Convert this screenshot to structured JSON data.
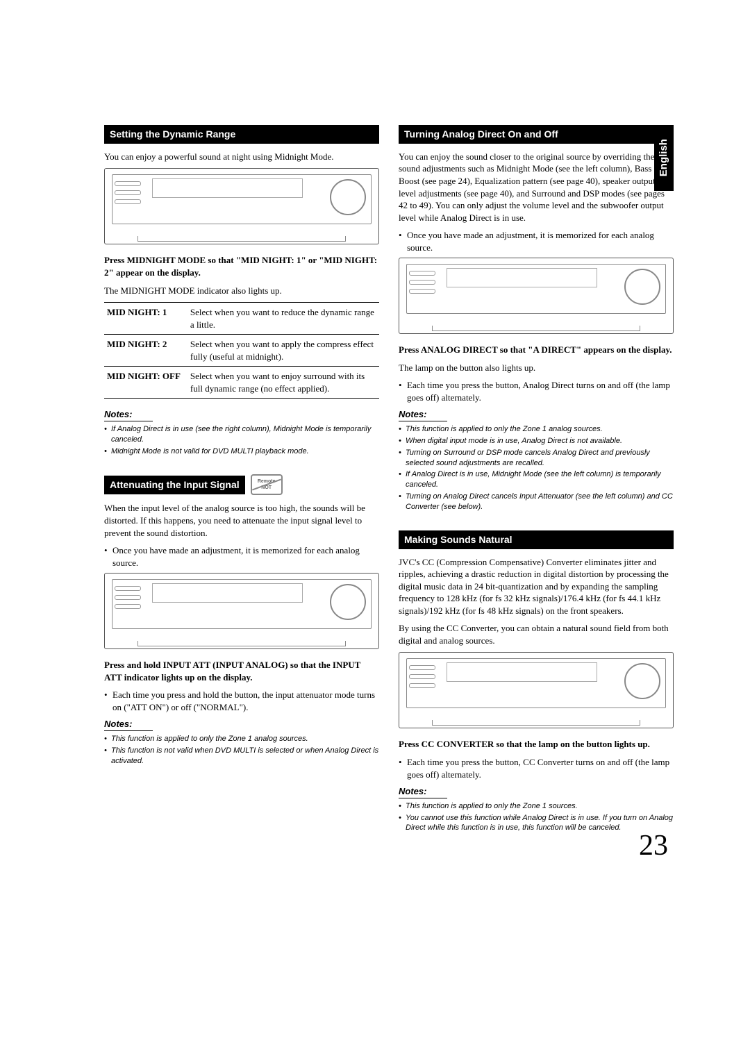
{
  "page": {
    "number": "23",
    "language": "English"
  },
  "left": {
    "section1": {
      "heading": "Setting the Dynamic Range",
      "intro": "You can enjoy a powerful sound at night using Midnight Mode.",
      "instruction": "Press MIDNIGHT MODE so that \"MID NIGHT: 1\" or \"MID NIGHT: 2\" appear on the display.",
      "afterInstruction": "The MIDNIGHT MODE indicator also lights up.",
      "options": [
        {
          "label": "MID NIGHT: 1",
          "desc": "Select when you want to reduce the dynamic range a little."
        },
        {
          "label": "MID NIGHT: 2",
          "desc": "Select when you want to apply the compress effect fully (useful at midnight)."
        },
        {
          "label": "MID NIGHT: OFF",
          "desc": "Select when you want to enjoy surround with its full dynamic range (no effect applied)."
        }
      ],
      "notesHeading": "Notes:",
      "notes": [
        "If Analog Direct is in use (see the right column), Midnight Mode is temporarily canceled.",
        "Midnight Mode is not valid for DVD MULTI playback mode."
      ]
    },
    "section2": {
      "heading": "Attenuating the Input Signal",
      "remoteBadge": {
        "top": "Remote",
        "bottom": "NOT"
      },
      "intro": "When the input level of the analog source is too high, the sounds will be distorted. If this happens, you need to attenuate the input signal level to prevent the sound distortion.",
      "bullet1": "Once you have made an adjustment, it is memorized for each analog source.",
      "instruction": "Press and hold INPUT ATT (INPUT ANALOG) so that the INPUT ATT indicator lights up on the display.",
      "bullet2": "Each time you press and hold the button, the input attenuator mode turns on (\"ATT ON\") or off (\"NORMAL\").",
      "notesHeading": "Notes:",
      "notes": [
        "This function is applied to only the Zone 1 analog sources.",
        "This function is not valid when DVD MULTI is selected or when Analog Direct is activated."
      ]
    }
  },
  "right": {
    "section1": {
      "heading": "Turning Analog Direct On and Off",
      "intro": "You can enjoy the sound closer to the original source by overriding the sound adjustments such as Midnight Mode (see the left column), Bass Boost (see page 24), Equalization pattern (see page 40), speaker output level adjustments (see page 40), and Surround and DSP modes (see pages 42 to 49). You can only adjust the volume level and the subwoofer output level while Analog Direct is in use.",
      "bullet1": "Once you have made an adjustment, it is memorized for each analog source.",
      "instruction": "Press ANALOG DIRECT so that \"A DIRECT\" appears on the display.",
      "afterInstruction": "The lamp on the button also lights up.",
      "bullet2": "Each time you press the button, Analog Direct turns on and off (the lamp goes off) alternately.",
      "notesHeading": "Notes:",
      "notes": [
        "This function is applied to only the Zone 1 analog sources.",
        "When digital input mode is in use, Analog Direct is not available.",
        "Turning on Surround or DSP mode cancels Analog Direct and previously selected sound adjustments are recalled.",
        "If Analog Direct is in use, Midnight Mode (see the left column) is temporarily canceled.",
        "Turning on Analog Direct cancels Input Attenuator (see the left column) and CC Converter (see below)."
      ]
    },
    "section2": {
      "heading": "Making Sounds Natural",
      "intro1": "JVC's CC (Compression Compensative) Converter eliminates jitter and ripples, achieving a drastic reduction in digital distortion by processing the digital music data in 24 bit-quantization and by expanding the sampling frequency to 128 kHz (for fs 32 kHz signals)/176.4 kHz (for fs 44.1 kHz signals)/192 kHz (for fs 48 kHz signals) on the front speakers.",
      "intro2": "By using the CC Converter, you can obtain a natural sound field from both digital and analog sources.",
      "instruction": "Press CC CONVERTER so that the lamp on the button lights up.",
      "bullet1": "Each time you press the button, CC Converter turns on and off (the lamp goes off) alternately.",
      "notesHeading": "Notes:",
      "notes": [
        "This function is applied to only the Zone 1 sources.",
        "You cannot use this function while Analog Direct is in use. If you turn on Analog Direct while this function is in use, this function will be canceled."
      ]
    }
  }
}
